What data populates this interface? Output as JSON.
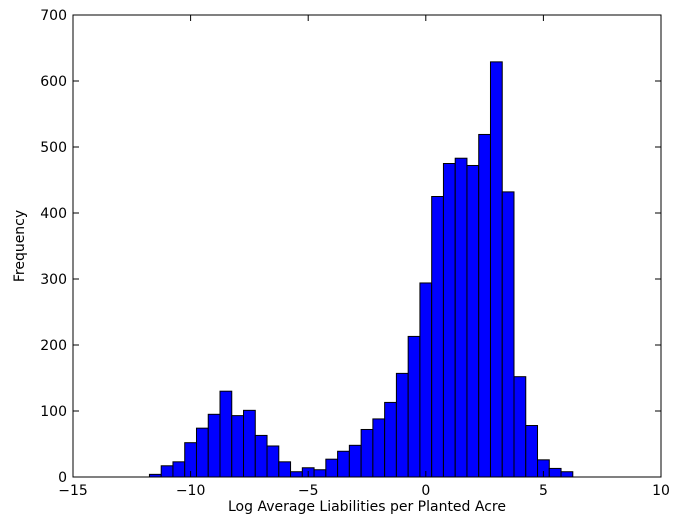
{
  "chart_data": {
    "type": "bar",
    "title": "",
    "xlabel": "Log Average Liabilities per Planted Acre",
    "ylabel": "Frequency",
    "xlim": [
      -15,
      10
    ],
    "ylim": [
      0,
      700
    ],
    "xticks": [
      -15,
      -10,
      -5,
      0,
      5,
      10
    ],
    "xtick_labels": [
      "−15",
      "−10",
      "−5",
      "0",
      "5",
      "10"
    ],
    "yticks": [
      0,
      100,
      200,
      300,
      400,
      500,
      600,
      700
    ],
    "ytick_labels": [
      "0",
      "100",
      "200",
      "300",
      "400",
      "500",
      "600",
      "700"
    ],
    "grid": false,
    "bar_color": "#0000ff",
    "edge_color": "#000000",
    "bins": [
      {
        "x0": -11.75,
        "x1": -11.25,
        "count": 4
      },
      {
        "x0": -11.25,
        "x1": -10.75,
        "count": 17
      },
      {
        "x0": -10.75,
        "x1": -10.25,
        "count": 23
      },
      {
        "x0": -10.25,
        "x1": -9.75,
        "count": 52
      },
      {
        "x0": -9.75,
        "x1": -9.25,
        "count": 74
      },
      {
        "x0": -9.25,
        "x1": -8.75,
        "count": 95
      },
      {
        "x0": -8.75,
        "x1": -8.25,
        "count": 130
      },
      {
        "x0": -8.25,
        "x1": -7.75,
        "count": 93
      },
      {
        "x0": -7.75,
        "x1": -7.25,
        "count": 101
      },
      {
        "x0": -7.25,
        "x1": -6.75,
        "count": 63
      },
      {
        "x0": -6.75,
        "x1": -6.25,
        "count": 47
      },
      {
        "x0": -6.25,
        "x1": -5.75,
        "count": 23
      },
      {
        "x0": -5.75,
        "x1": -5.25,
        "count": 8
      },
      {
        "x0": -5.25,
        "x1": -4.75,
        "count": 14
      },
      {
        "x0": -4.75,
        "x1": -4.25,
        "count": 11
      },
      {
        "x0": -4.25,
        "x1": -3.75,
        "count": 27
      },
      {
        "x0": -3.75,
        "x1": -3.25,
        "count": 39
      },
      {
        "x0": -3.25,
        "x1": -2.75,
        "count": 48
      },
      {
        "x0": -2.75,
        "x1": -2.25,
        "count": 72
      },
      {
        "x0": -2.25,
        "x1": -1.75,
        "count": 88
      },
      {
        "x0": -1.75,
        "x1": -1.25,
        "count": 113
      },
      {
        "x0": -1.25,
        "x1": -0.75,
        "count": 157
      },
      {
        "x0": -0.75,
        "x1": -0.25,
        "count": 213
      },
      {
        "x0": -0.25,
        "x1": 0.25,
        "count": 294
      },
      {
        "x0": 0.25,
        "x1": 0.75,
        "count": 425
      },
      {
        "x0": 0.75,
        "x1": 1.25,
        "count": 475
      },
      {
        "x0": 1.25,
        "x1": 1.75,
        "count": 483
      },
      {
        "x0": 1.75,
        "x1": 2.25,
        "count": 472
      },
      {
        "x0": 2.25,
        "x1": 2.75,
        "count": 519
      },
      {
        "x0": 2.75,
        "x1": 3.25,
        "count": 629
      },
      {
        "x0": 3.25,
        "x1": 3.75,
        "count": 432
      },
      {
        "x0": 3.75,
        "x1": 4.25,
        "count": 152
      },
      {
        "x0": 4.25,
        "x1": 4.75,
        "count": 78
      },
      {
        "x0": 4.75,
        "x1": 5.25,
        "count": 26
      },
      {
        "x0": 5.25,
        "x1": 5.75,
        "count": 13
      },
      {
        "x0": 5.75,
        "x1": 6.25,
        "count": 8
      }
    ]
  }
}
